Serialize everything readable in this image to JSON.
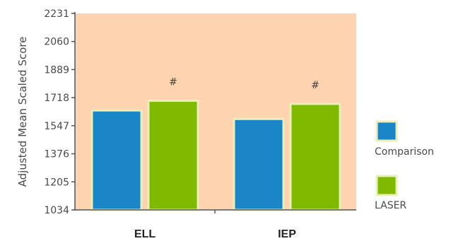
{
  "chart_data": {
    "type": "bar",
    "title": "",
    "xlabel": "",
    "ylabel": "Adjusted Mean Scaled Score",
    "categories": [
      "ELL",
      "IEP"
    ],
    "series": [
      {
        "name": "Comparison",
        "values": [
          1640,
          1588
        ],
        "color": "#1a86c8"
      },
      {
        "name": "LASER",
        "values": [
          1699,
          1680
        ],
        "color": "#7fba00"
      }
    ],
    "annotations": [
      "#",
      "#"
    ],
    "ylim": [
      1034,
      2231
    ],
    "yticks": [
      "2231",
      "2060",
      "1889",
      "1718",
      "1547",
      "1376",
      "1205",
      "1034"
    ],
    "grid": false,
    "legend_position": "right",
    "plot_background": "#fdd3b0",
    "bar_border": "#e9efb9"
  }
}
